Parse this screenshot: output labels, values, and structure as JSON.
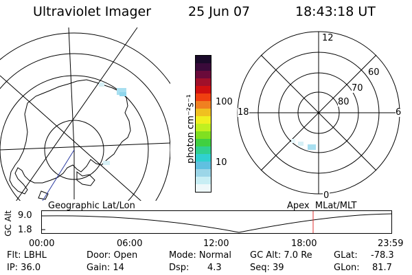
{
  "header": {
    "instrument": "Ultraviolet Imager",
    "date": "25 Jun 07",
    "time": "18:43:18 UT"
  },
  "colorbar": {
    "label": "photon cm⁻²s⁻¹",
    "ticks": [
      "100",
      "10"
    ],
    "colors": [
      "#1a0a2a",
      "#3a0a3a",
      "#6a0a3a",
      "#a0102a",
      "#d01010",
      "#f04010",
      "#f08020",
      "#f0c020",
      "#f0f020",
      "#c0f020",
      "#80e020",
      "#40d040",
      "#30d090",
      "#30d0d0",
      "#60c0e0",
      "#9cd6e8",
      "#c8eef4",
      "#eef8fa"
    ]
  },
  "left_map": {
    "caption": "Geographic Lat/Lon"
  },
  "right_map": {
    "caption": "Apex  MLat/MLT",
    "mlt_labels": {
      "top": "12",
      "bottom": "0",
      "left": "18",
      "right": "6"
    },
    "lat_labels": [
      "60",
      "70",
      "80"
    ]
  },
  "timeline": {
    "axis_label": "GC Alt",
    "y_ticks": [
      "9.0",
      "1.8"
    ],
    "x_ticks": [
      "00:00",
      "06:00",
      "12:00",
      "18:00",
      "23:59"
    ],
    "current_time_marker": "18:43"
  },
  "info": {
    "flt": "Flt: LBHL",
    "ip": "IP: 36.0",
    "door": "Door: Open",
    "gain": "Gain: 14",
    "mode": "Mode: Normal",
    "dsp_label": "Dsp:",
    "dsp_value": "4.3",
    "gc_alt": "GC Alt: 7.0 Re",
    "seq": "Seq: 39",
    "glat_label": "GLat:",
    "glat_value": "-78.3",
    "glon_label": "GLon:",
    "glon_value": "81.7"
  }
}
